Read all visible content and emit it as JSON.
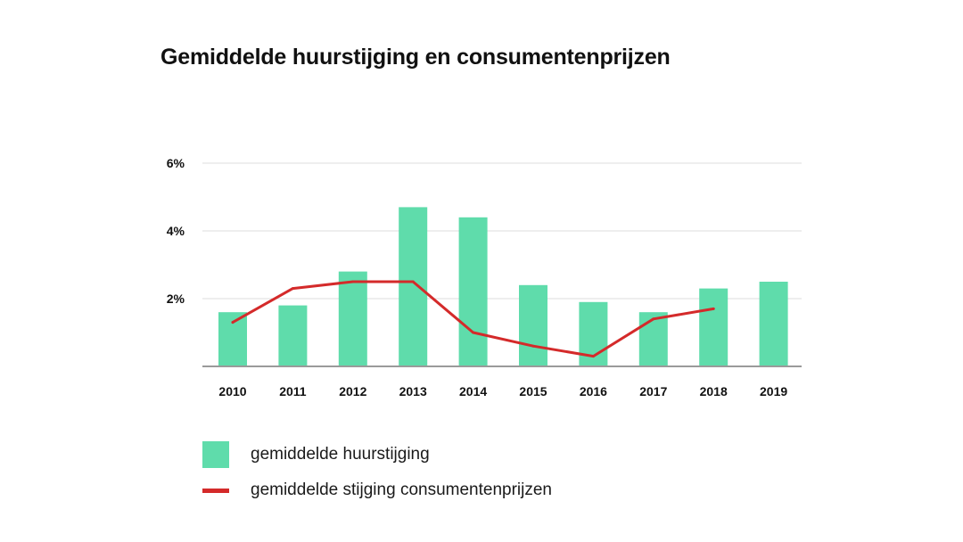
{
  "chart_data": {
    "type": "bar",
    "title": "Gemiddelde huurstijging en consumentenprijzen",
    "xlabel": "",
    "ylabel": "",
    "categories": [
      "2010",
      "2011",
      "2012",
      "2013",
      "2014",
      "2015",
      "2016",
      "2017",
      "2018",
      "2019"
    ],
    "ylim": [
      0,
      6
    ],
    "yticks": [
      {
        "value": 2,
        "label": "2%"
      },
      {
        "value": 4,
        "label": "4%"
      },
      {
        "value": 6,
        "label": "6%"
      }
    ],
    "grid": true,
    "legend_position": "bottom-left",
    "series": [
      {
        "name": "gemiddelde huurstijging",
        "type": "bar",
        "color": "#5fdcab",
        "values": [
          1.6,
          1.8,
          2.8,
          4.7,
          4.4,
          2.4,
          1.9,
          1.6,
          2.3,
          2.5
        ]
      },
      {
        "name": "gemiddelde stijging consumentenprijzen",
        "type": "line",
        "color": "#d42a2a",
        "values": [
          1.3,
          2.3,
          2.5,
          2.5,
          1.0,
          0.6,
          0.3,
          1.4,
          1.7,
          null
        ]
      }
    ]
  }
}
